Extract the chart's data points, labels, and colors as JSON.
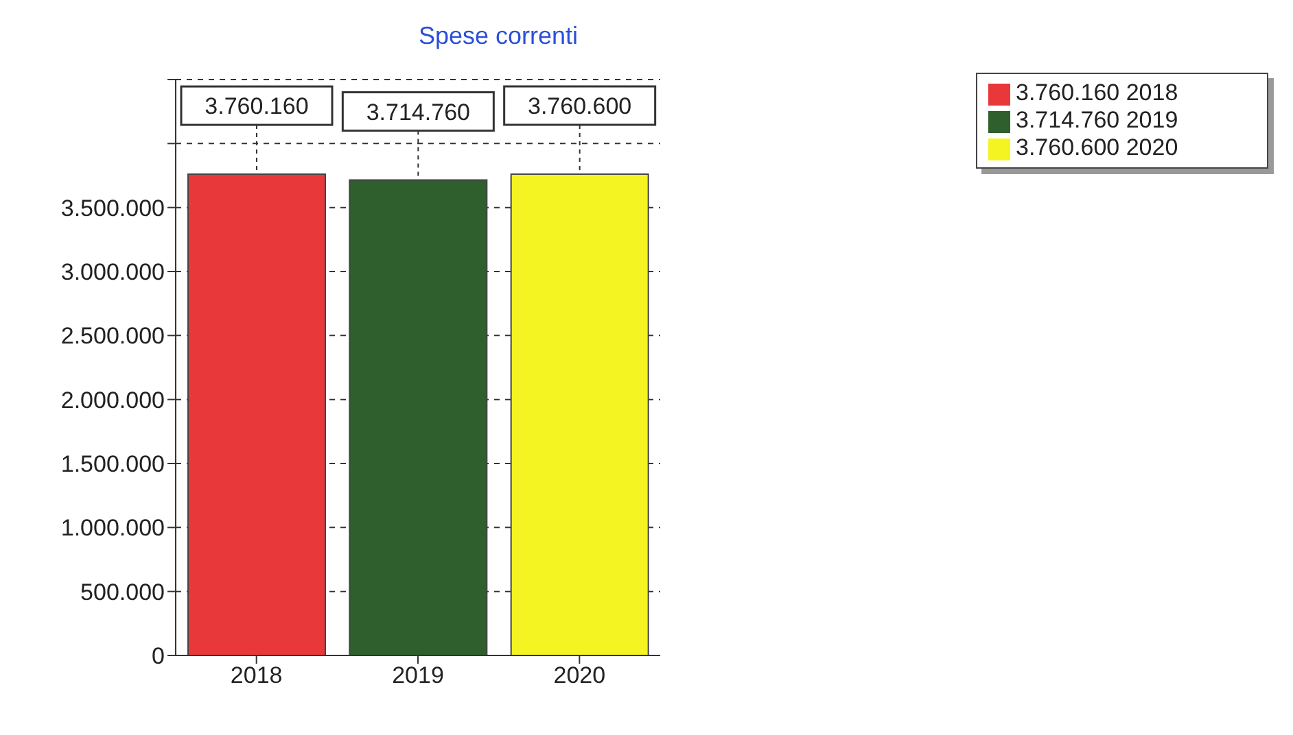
{
  "chart_data": {
    "type": "bar",
    "title": "Spese correnti",
    "categories": [
      "2018",
      "2019",
      "2020"
    ],
    "stacked": true,
    "series": [
      {
        "name": "3.760.160 2018",
        "color": "#e8383a",
        "values": [
          3760160,
          null,
          null
        ],
        "value_labels": [
          "3.760.160",
          null,
          null
        ]
      },
      {
        "name": "3.714.760 2019",
        "color": "#2f5f2c",
        "values": [
          null,
          3714760,
          null
        ],
        "value_labels": [
          null,
          "3.714.760",
          null
        ]
      },
      {
        "name": "3.760.600 2020",
        "color": "#f4f422",
        "values": [
          null,
          null,
          3760600
        ],
        "value_labels": [
          null,
          null,
          "3.760.600"
        ]
      }
    ],
    "ylim": [
      0,
      4500000
    ],
    "yticks": [
      0,
      {
        "value": 500000,
        "label": "500.000"
      },
      {
        "value": 1000000,
        "label": "1.000.000"
      },
      {
        "value": 1500000,
        "label": "1.500.000"
      },
      {
        "value": 2000000,
        "label": "2.000.000"
      },
      {
        "value": 2500000,
        "label": "2.500.000"
      },
      {
        "value": 3000000,
        "label": "3.000.000"
      },
      {
        "value": 3500000,
        "label": "3.500.000"
      },
      {
        "value": 4000000,
        "label": null
      },
      {
        "value": 4500000,
        "label": null
      }
    ],
    "grid": "y",
    "legend": "top right"
  }
}
